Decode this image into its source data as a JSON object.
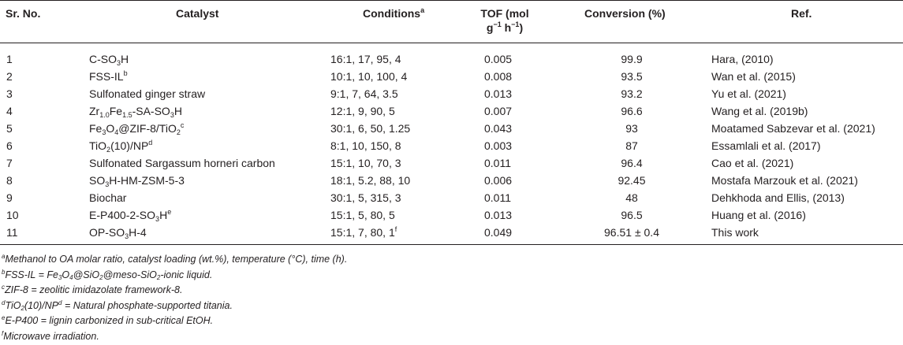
{
  "header": {
    "sr": "Sr. No.",
    "catalyst": "Catalyst",
    "conditions": "Conditions",
    "conditions_mark": "a",
    "tof_line1": "TOF (mol",
    "tof_g": "g",
    "tof_exp1": "−1",
    "tof_h": " h",
    "tof_exp2": "−1",
    "tof_close": ")",
    "conversion": "Conversion (%)",
    "ref": "Ref."
  },
  "rows": [
    {
      "sr": "1",
      "catalyst": [
        [
          "C-SO",
          ""
        ],
        [
          "3",
          "sub"
        ],
        [
          "H",
          ""
        ]
      ],
      "conditions": "16:1, 17, 95, 4",
      "tof": "0.005",
      "conversion": "99.9",
      "ref": "Hara, (2010)"
    },
    {
      "sr": "2",
      "catalyst": [
        [
          "FSS-IL",
          ""
        ],
        [
          "b",
          "sup"
        ]
      ],
      "conditions": "10:1, 10, 100, 4",
      "tof": "0.008",
      "conversion": "93.5",
      "ref": "Wan et al. (2015)"
    },
    {
      "sr": "3",
      "catalyst": [
        [
          "Sulfonated ginger straw",
          ""
        ]
      ],
      "conditions": "9:1, 7, 64, 3.5",
      "tof": "0.013",
      "conversion": "93.2",
      "ref": "Yu et al. (2021)"
    },
    {
      "sr": "4",
      "catalyst": [
        [
          "Zr",
          ""
        ],
        [
          "1.0",
          "sub"
        ],
        [
          "Fe",
          ""
        ],
        [
          "1.5",
          "sub"
        ],
        [
          "-SA-SO",
          ""
        ],
        [
          "3",
          "sub"
        ],
        [
          "H",
          ""
        ]
      ],
      "conditions": "12:1, 9, 90, 5",
      "tof": "0.007",
      "conversion": "96.6",
      "ref": "Wang et al. (2019b)"
    },
    {
      "sr": "5",
      "catalyst": [
        [
          "Fe",
          ""
        ],
        [
          "3",
          "sub"
        ],
        [
          "O",
          ""
        ],
        [
          "4",
          "sub"
        ],
        [
          "@ZIF-8/TiO",
          ""
        ],
        [
          "2",
          "sub"
        ],
        [
          "c",
          "sup"
        ]
      ],
      "conditions": "30:1, 6, 50, 1.25",
      "tof": "0.043",
      "conversion": "93",
      "ref": "Moatamed Sabzevar et al. (2021)"
    },
    {
      "sr": "6",
      "catalyst": [
        [
          "TiO",
          ""
        ],
        [
          "2",
          "sub"
        ],
        [
          "(10)/NP",
          ""
        ],
        [
          "d",
          "sup"
        ]
      ],
      "conditions": "8:1, 10, 150, 8",
      "tof": "0.003",
      "conversion": "87",
      "ref": "Essamlali et al. (2017)"
    },
    {
      "sr": "7",
      "catalyst": [
        [
          "Sulfonated Sargassum horneri carbon",
          ""
        ]
      ],
      "conditions": "15:1, 10, 70, 3",
      "tof": "0.011",
      "conversion": "96.4",
      "ref": "Cao et al. (2021)"
    },
    {
      "sr": "8",
      "catalyst": [
        [
          "SO",
          ""
        ],
        [
          "3",
          "sub"
        ],
        [
          "H-HM-ZSM-5-3",
          ""
        ]
      ],
      "conditions": "18:1, 5.2, 88, 10",
      "tof": "0.006",
      "conversion": "92.45",
      "ref": "Mostafa Marzouk et al. (2021)"
    },
    {
      "sr": "9",
      "catalyst": [
        [
          "Biochar",
          ""
        ]
      ],
      "conditions": "30:1, 5, 315, 3",
      "tof": "0.011",
      "conversion": "48",
      "ref": "Dehkhoda and Ellis, (2013)"
    },
    {
      "sr": "10",
      "catalyst": [
        [
          "E-P400-2-SO",
          ""
        ],
        [
          "3",
          "sub"
        ],
        [
          "H",
          ""
        ],
        [
          "e",
          "sup"
        ]
      ],
      "conditions": "15:1, 5, 80, 5",
      "tof": "0.013",
      "conversion": "96.5",
      "ref": "Huang et al. (2016)"
    },
    {
      "sr": "11",
      "catalyst": [
        [
          "OP-SO",
          ""
        ],
        [
          "3",
          "sub"
        ],
        [
          "H-4",
          ""
        ]
      ],
      "conditions": "15:1, 7, 80, 1",
      "conditions_mark": "f",
      "tof": "0.049",
      "conversion": "96.51 ± 0.4",
      "ref": "This work"
    }
  ],
  "notes": [
    [
      [
        "a",
        "sup"
      ],
      [
        "Methanol to OA molar ratio, catalyst loading (wt.%), temperature (°C), time (h).",
        ""
      ]
    ],
    [
      [
        "b",
        "sup"
      ],
      [
        "FSS-IL = Fe",
        ""
      ],
      [
        "3",
        "sub"
      ],
      [
        "O",
        ""
      ],
      [
        "4",
        "sub"
      ],
      [
        "@SiO",
        ""
      ],
      [
        "2",
        "sub"
      ],
      [
        "@meso-SiO",
        ""
      ],
      [
        "2",
        "sub"
      ],
      [
        "-ionic liquid.",
        ""
      ]
    ],
    [
      [
        "c",
        "sup"
      ],
      [
        "ZIF-8 = zeolitic imidazolate framework-8.",
        ""
      ]
    ],
    [
      [
        "d",
        "sup"
      ],
      [
        "TiO",
        ""
      ],
      [
        "2",
        "sub"
      ],
      [
        "(10)/NP",
        ""
      ],
      [
        "d",
        "sup"
      ],
      [
        " = Natural phosphate-supported titania.",
        ""
      ]
    ],
    [
      [
        "e",
        "sup"
      ],
      [
        "E-P400 = lignin carbonized in sub-critical EtOH.",
        ""
      ]
    ],
    [
      [
        "f",
        "sup"
      ],
      [
        "Microwave irradiation.",
        ""
      ]
    ]
  ]
}
